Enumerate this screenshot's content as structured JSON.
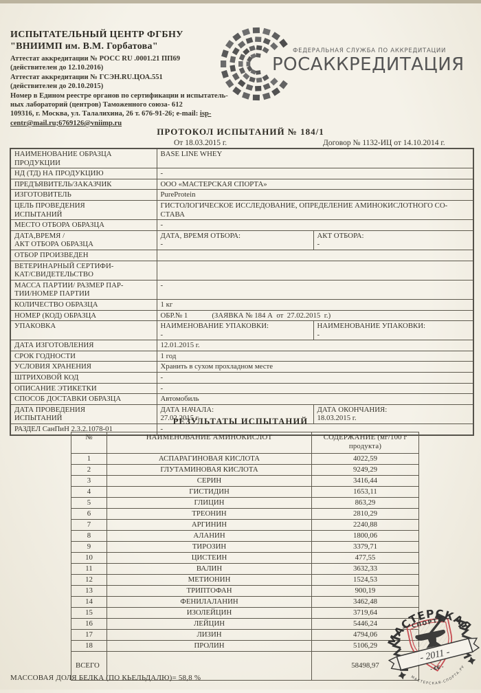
{
  "header": {
    "org_line1": "ИСПЫТАТЕЛЬНЫЙ  ЦЕНТР  ФГБНУ",
    "org_line2": "\"ВНИИМП им. В.М. Горбатова\"",
    "cred_lines": [
      "Аттестат  аккредитации № РОСС RU  .0001.21   ПП69",
      "(действителен до 12.10.2016)",
      "Аттестат аккредитации № ГСЭН.RU.ЦОА.551",
      "(действителен до  20.10.2015)",
      "Номер в Едином реестре органов по сертификации и испытатель-",
      "ных лабораторий (центров) Таможенного союза- 612"
    ],
    "addr_prefix": "109316, г. Москва, ул. Талалихина, 26 т. 676-91-26; e-mail: ",
    "addr_link": "isp-",
    "email_line": "centr@mail.ru;6769126@vniimp.ru"
  },
  "logo": {
    "agency_small": "ФЕДЕРАЛЬНАЯ СЛУЖБА ПО АККРЕДИТАЦИИ",
    "agency_large": "РОСАККРЕДИТАЦИЯ"
  },
  "title": {
    "protocol": "ПРОТОКОЛ  ИСПЫТАНИЙ   № 184/1",
    "date": "От  18.03.2015 г.",
    "contract": "Договор № 1132-ИЦ от 14.10.2014 г."
  },
  "info_table": {
    "rows": [
      {
        "label": "НАИМЕНОВАНИЕ  ОБРАЗЦА\nПРОДУКЦИИ",
        "cells": [
          "BASE LINE WHEY"
        ],
        "dbl": true
      },
      {
        "label": "НД (ТД) НА ПРОДУКЦИЮ",
        "cells": [
          "-"
        ],
        "dbl": false
      },
      {
        "label": "ПРЕДЪЯВИТЕЛЬ/ЗАКАЗЧИК",
        "cells": [
          "ООО «МАСТЕРСКАЯ СПОРТА»"
        ],
        "dbl": false
      },
      {
        "label": "ИЗГОТОВИТЕЛЬ",
        "cells": [
          "PureProtein"
        ],
        "dbl": false
      },
      {
        "label": "ЦЕЛЬ ПРОВЕДЕНИЯ\nИСПЫТАНИЙ",
        "cells": [
          "ГИСТОЛОГИЧЕСКОЕ ИССЛЕДОВАНИЕ, ОПРЕДЕЛЕНИЕ АМИНОКИСЛОТНОГО СО-\nСТАВА"
        ],
        "dbl": true
      },
      {
        "label": "МЕСТО ОТБОРА ОБРАЗЦА",
        "cells": [
          "-"
        ],
        "dbl": false
      },
      {
        "label": "ДАТА,ВРЕМЯ /\nАКТ ОТБОРА ОБРАЗЦА",
        "cells": [
          "ДАТА, ВРЕМЯ ОТБОРА:\n-",
          "АКТ ОТБОРА:\n-"
        ],
        "dbl": true
      },
      {
        "label": "ОТБОР ПРОИЗВЕДЕН",
        "cells": [
          ""
        ],
        "dbl": false
      },
      {
        "label": "ВЕТЕРИНАРНЫЙ СЕРТИФИ-\nКАТ/СВИДЕТЕЛЬСТВО",
        "cells": [
          ""
        ],
        "dbl": true
      },
      {
        "label": "МАССА ПАРТИИ/ РАЗМЕР ПАР-\nТИИ/НОМЕР ПАРТИИ",
        "cells": [
          "-"
        ],
        "dbl": true
      },
      {
        "label": "КОЛИЧЕСТВО ОБРАЗЦА",
        "cells": [
          "1 кг"
        ],
        "dbl": false
      },
      {
        "label": "НОМЕР (КОД) ОБРАЗЦА",
        "cells": [
          "ОБР.№ 1             (ЗАЯВКА № 184 А  от  27.02.2015  г.)"
        ],
        "dbl": false
      },
      {
        "label": "УПАКОВКА",
        "cells": [
          "НАИМЕНОВАНИЕ УПАКОВКИ:\n-",
          "НАИМЕНОВАНИЕ УПАКОВКИ:\n-"
        ],
        "dbl": true
      },
      {
        "label": "ДАТА ИЗГОТОВЛЕНИЯ",
        "cells": [
          "12.01.2015 г."
        ],
        "dbl": false
      },
      {
        "label": "СРОК ГОДНОСТИ",
        "cells": [
          "1 год"
        ],
        "dbl": false
      },
      {
        "label": "УСЛОВИЯ ХРАНЕНИЯ",
        "cells": [
          "Хранить в сухом прохладном месте"
        ],
        "dbl": false
      },
      {
        "label": "ШТРИХОВОЙ КОД",
        "cells": [
          "-"
        ],
        "dbl": false
      },
      {
        "label": "ОПИСАНИЕ ЭТИКЕТКИ",
        "cells": [
          "-"
        ],
        "dbl": false
      },
      {
        "label": "СПОСОБ ДОСТАВКИ ОБРАЗЦА",
        "cells": [
          "Автомобиль"
        ],
        "dbl": false
      },
      {
        "label": "ДАТА  ПРОВЕДЕНИЯ\nИСПЫТАНИЙ",
        "cells": [
          "ДАТА НАЧАЛА:\n27.02.2015 г.",
          "ДАТА ОКОНЧАНИЯ:\n18.03.2015 г."
        ],
        "dbl": true
      },
      {
        "label": "РАЗДЕЛ СанПиН 2.3.2.1078-01",
        "cells": [
          "-"
        ],
        "dbl": false
      }
    ]
  },
  "results": {
    "heading": "РЕЗУЛЬТАТЫ  ИСПЫТАНИЙ",
    "columns": [
      "№",
      "НАИМЕНОВАНИЕ АМИНОКИСЛОТ",
      "СОДЕРЖАНИЕ (мг/100 г\nпродукта)"
    ],
    "rows": [
      [
        "1",
        "АСПАРАГИНОВАЯ КИСЛОТА",
        "4022,59"
      ],
      [
        "2",
        "ГЛУТАМИНОВАЯ КИСЛОТА",
        "9249,29"
      ],
      [
        "3",
        "СЕРИН",
        "3416,44"
      ],
      [
        "4",
        "ГИСТИДИН",
        "1653,11"
      ],
      [
        "5",
        "ГЛИЦИН",
        "863,29"
      ],
      [
        "6",
        "ТРЕОНИН",
        "2810,29"
      ],
      [
        "7",
        "АРГИНИН",
        "2240,88"
      ],
      [
        "8",
        "АЛАНИН",
        "1800,06"
      ],
      [
        "9",
        "ТИРОЗИН",
        "3379,71"
      ],
      [
        "10",
        "ЦИСТЕИН",
        "477,55"
      ],
      [
        "11",
        "ВАЛИН",
        "3632,33"
      ],
      [
        "12",
        "МЕТИОНИН",
        "1524,53"
      ],
      [
        "13",
        "ТРИПТОФАН",
        "900,19"
      ],
      [
        "14",
        "ФЕНИЛАЛАНИН",
        "3462,48"
      ],
      [
        "15",
        "ИЗОЛЕЙЦИН",
        "3719,64"
      ],
      [
        "16",
        "ЛЕЙЦИН",
        "5446,24"
      ],
      [
        "17",
        "ЛИЗИН",
        "4794,06"
      ],
      [
        "18",
        "ПРОЛИН",
        "5106,29"
      ]
    ],
    "total_label": "ВСЕГО",
    "total_value": "58498,97"
  },
  "footer": {
    "protein_line": "МАССОВАЯ ДОЛЯ БЕЛКА (ПО КЬЕЛЬДАЛЮ)= 58,8 %"
  },
  "stamp": {
    "top": "МАСТЕРСКАЯ",
    "middle": "— СПОРТА —",
    "year": "- 2011 -",
    "mark": "- ЄЄ -",
    "bottom": "МАСТЕРСКАЯ-СПОРТА.РУ"
  },
  "colors": {
    "stamp_red": "#c5444a",
    "stamp_black": "#2c2c2c",
    "mosaic_gray": "#5a5a5a",
    "paper": "#f3efe6"
  }
}
